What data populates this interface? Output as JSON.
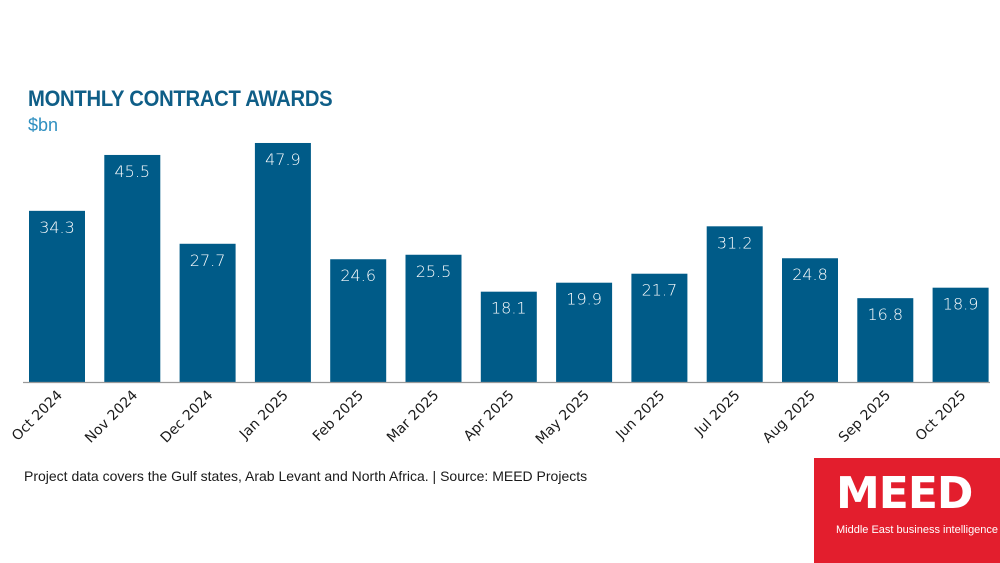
{
  "chart_data": {
    "type": "bar",
    "title": "MONTHLY CONTRACT AWARDS",
    "subtitle": "$bn",
    "xlabel": "",
    "ylabel": "$bn",
    "categories": [
      "Oct 2024",
      "Nov 2024",
      "Dec 2024",
      "Jan 2025",
      "Feb 2025",
      "Mar 2025",
      "Apr 2025",
      "May 2025",
      "Jun 2025",
      "Jul 2025",
      "Aug 2025",
      "Sep 2025",
      "Oct 2025"
    ],
    "values": [
      34.3,
      45.5,
      27.7,
      47.9,
      24.6,
      25.5,
      18.1,
      19.9,
      21.7,
      31.2,
      24.8,
      16.8,
      18.9
    ],
    "data_labels": [
      "34.3",
      "45.5",
      "27.7",
      "47.9",
      "24.6",
      "25.5",
      "18.1",
      "19.9",
      "21.7",
      "31.2",
      "24.8",
      "16.8",
      "18.9"
    ],
    "ylim": [
      0,
      50
    ],
    "grid": false,
    "legend": "none",
    "bar_color": "#005b88"
  },
  "footnote": "Project data covers the Gulf states, Arab Levant and North Africa. | Source: MEED Projects",
  "logo": {
    "word": "MEED",
    "tagline": "Middle East business intelligence",
    "color": "#e31e2d"
  }
}
